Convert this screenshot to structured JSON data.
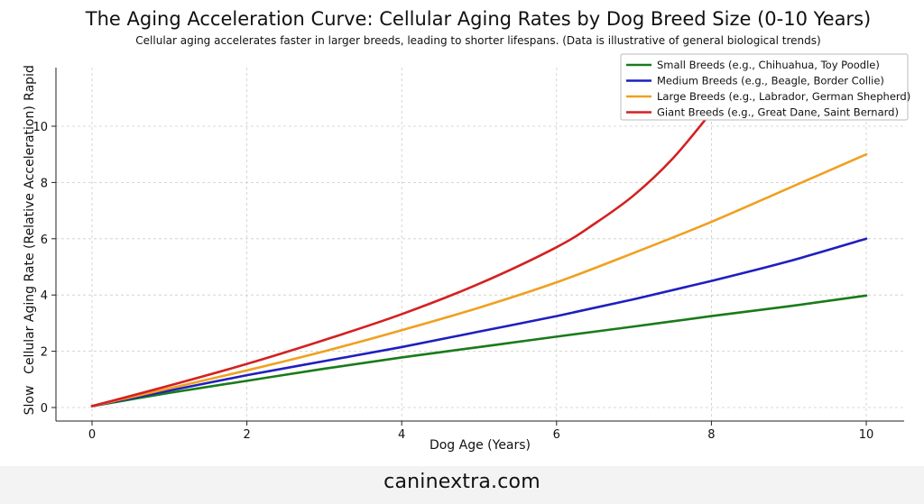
{
  "chart_data": {
    "type": "line",
    "title": "The Aging Acceleration Curve: Cellular Aging Rates by Dog Breed Size (0-10 Years)",
    "subtitle": "Cellular aging accelerates faster in larger breeds, leading to shorter lifespans. (Data is illustrative of general biological trends)",
    "xlabel": "Dog Age (Years)",
    "ylabel": "Cellular Aging Rate (Relative Acceleration)",
    "ylabel_low": "Slow",
    "ylabel_high": "Rapid",
    "xlim": [
      0,
      10
    ],
    "ylim": [
      0,
      11.5
    ],
    "x_ticks": [
      "0",
      "2",
      "4",
      "6",
      "8",
      "10"
    ],
    "y_ticks": [
      "0",
      "2",
      "4",
      "6",
      "8",
      "10"
    ],
    "grid": true,
    "legend_position": "top-right",
    "series": [
      {
        "name": "Small Breeds (e.g., Chihuahua, Toy Poodle)",
        "color": "#1a7a1a",
        "x": [
          0,
          1,
          2,
          3,
          4,
          5,
          6,
          7,
          8,
          9,
          10
        ],
        "y": [
          0.05,
          0.52,
          0.95,
          1.38,
          1.78,
          2.15,
          2.52,
          2.88,
          3.25,
          3.6,
          3.98
        ]
      },
      {
        "name": "Medium Breeds (e.g., Beagle, Border Collie)",
        "color": "#1f1fbf",
        "x": [
          0,
          1,
          2,
          3,
          4,
          5,
          6,
          7,
          8,
          9,
          10
        ],
        "y": [
          0.05,
          0.6,
          1.15,
          1.65,
          2.15,
          2.7,
          3.25,
          3.85,
          4.5,
          5.2,
          6.0
        ]
      },
      {
        "name": "Large Breeds (e.g., Labrador, German Shepherd)",
        "color": "#f0a020",
        "x": [
          0,
          1,
          2,
          3,
          4,
          5,
          6,
          7,
          8,
          9,
          10
        ],
        "y": [
          0.05,
          0.68,
          1.32,
          2.0,
          2.75,
          3.55,
          4.45,
          5.5,
          6.6,
          7.8,
          9.0
        ]
      },
      {
        "name": "Giant Breeds (e.g., Great Dane, Saint Bernard)",
        "color": "#d42020",
        "x": [
          0,
          1,
          2,
          3,
          4,
          5,
          6,
          6.5,
          7,
          7.5,
          8
        ],
        "y": [
          0.05,
          0.78,
          1.55,
          2.4,
          3.32,
          4.4,
          5.7,
          6.55,
          7.55,
          8.85,
          10.5
        ]
      }
    ]
  },
  "footer": {
    "site": "caninextra.com"
  }
}
